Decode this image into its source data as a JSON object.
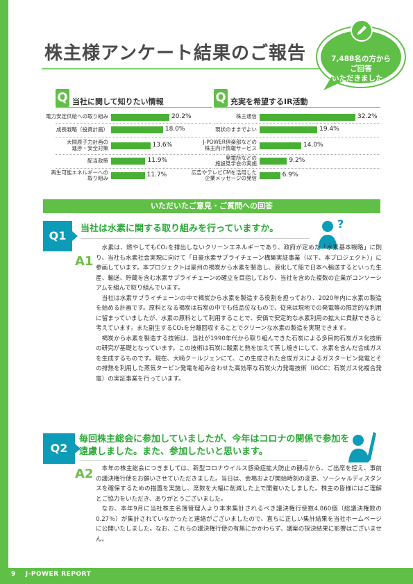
{
  "page": {
    "title": "株主様アンケート結果のご報告",
    "page_number": "9",
    "footer": "J-POWER REPORT"
  },
  "bubble": {
    "line1": "7,488名の方から",
    "line2": "ご回答",
    "line3": "いただきました。"
  },
  "survey": [
    {
      "q": "Q",
      "title": "当社に関して知りたい情報",
      "items": [
        {
          "label": "電力安定供給への取り組み",
          "value": 20.2,
          "display": "20.2%"
        },
        {
          "label": "成長戦略（投資計画）",
          "value": 18.0,
          "display": "18.0%"
        },
        {
          "label": "大間原子力計画の\n進捗・安全対策",
          "value": 13.6,
          "display": "13.6%"
        },
        {
          "label": "配当政策",
          "value": 11.9,
          "display": "11.9%"
        },
        {
          "label": "再生可能エネルギーへの\n取り組み",
          "value": 11.7,
          "display": "11.7%"
        }
      ]
    },
    {
      "q": "Q",
      "title": "充実を希望するIR活動",
      "items": [
        {
          "label": "株主通信",
          "value": 32.2,
          "display": "32.2%"
        },
        {
          "label": "現状のままでよい",
          "value": 19.4,
          "display": "19.4%"
        },
        {
          "label": "J-POWER倶楽部などの\n株主向け情報サービス",
          "value": 14.0,
          "display": "14.0%"
        },
        {
          "label": "発電所などの\n施設見学会の実施",
          "value": 9.2,
          "display": "9.2%"
        },
        {
          "label": "広告やテレビCMを活用した\n企業メッセージの発信",
          "value": 6.9,
          "display": "6.9%"
        }
      ]
    }
  ],
  "section_title": "いただいたご意見・ご質問への回答",
  "qa": [
    {
      "q_label": "Q1",
      "question": "当社は水素に関する取り組みを行っていますか。",
      "a_label": "A1",
      "paragraphs": [
        "水素は、燃やしてもCO₂を排出しないクリーンエネルギーであり、政府が定めた「水素基本戦略」に則り、当社も水素社会実現に向けて「日豪水素サプライチェーン構築実証事業（以下、本プロジェクト）」に参画しています。本プロジェクトは豪州の褐炭から水素を製造し、液化して船で日本へ輸送するといった生産、輸送、貯蔵を含む水素サプライチェーンの確立を目指しており、当社を含めた複数の企業がコンソーシアムを組んで取り組んでいます。",
        "当社は水素サプライチェーンの中で褐炭から水素を製造する役割を担っており、2020年内に水素の製造を始める計画です。原料となる褐炭は石炭の中でも低品位なもので、従来は現地での発電等の限定的な利用に留まっていましたが、水素の原料として利用することで、安価で安定的な水素利用の拡大に貢献できると考えています。また副生するCO₂を分離回収することでクリーンな水素の製造を実現できます。",
        "褐炭から水素を製造する技術は、当社が1990年代から取り組んできた石炭による多目的石炭ガス化技術の研究が基礎となっています。この技術は石炭に酸素と熱を加えて蒸し焼きにして、水素を含んだ合成ガスを生成するものです。現在、大崎クールジェンにて、この生成された合成ガスによるガスタービン発電とその排熱を利用した蒸気タービン発電を組み合わせた高効率な石炭火力発電技術（IGCC：石炭ガス化複合発電）の実証事業を行っています。"
      ]
    },
    {
      "q_label": "Q2",
      "question_line1": "毎回株主総会に参加していましたが、今年はコロナの関係で参加を",
      "question_line2": "遠慮しました。また、参加したいと思います。",
      "a_label": "A2",
      "paragraphs": [
        "本年の株主総会につきましては、新型コロナウイルス感染症拡大防止の観点から、ご出席を控え、事前の議決権行使をお願いさせていただきました。当日は、会場および開始時刻の変更、ソーシャルディスタンスを確保するための措置を実施し、席数を大幅に削減した上で開催いたしました。株主の皆様にはご理解とご協力をいただき、ありがとうございました。",
        "なお、本年9月に当社株主名簿管理人より本来集計されるべき議決権行使数4,860個（総議決権数の0.27％）が集計されていなかったと連絡がございましたので、直ちに正しい集計結果を当社ホームページに公開いたしました。なお、これらの議決権行使の有無にかかわらず、議案の採決結果に影響はございません。"
      ]
    }
  ],
  "colors": {
    "green": "#5fbf46",
    "bar_green": "#49b035",
    "blue": "#0d9cb8",
    "question_green": "#2aa836"
  },
  "icons": [
    "pencil-icon",
    "thinking-person-icon",
    "hand-raised-person-icon"
  ]
}
